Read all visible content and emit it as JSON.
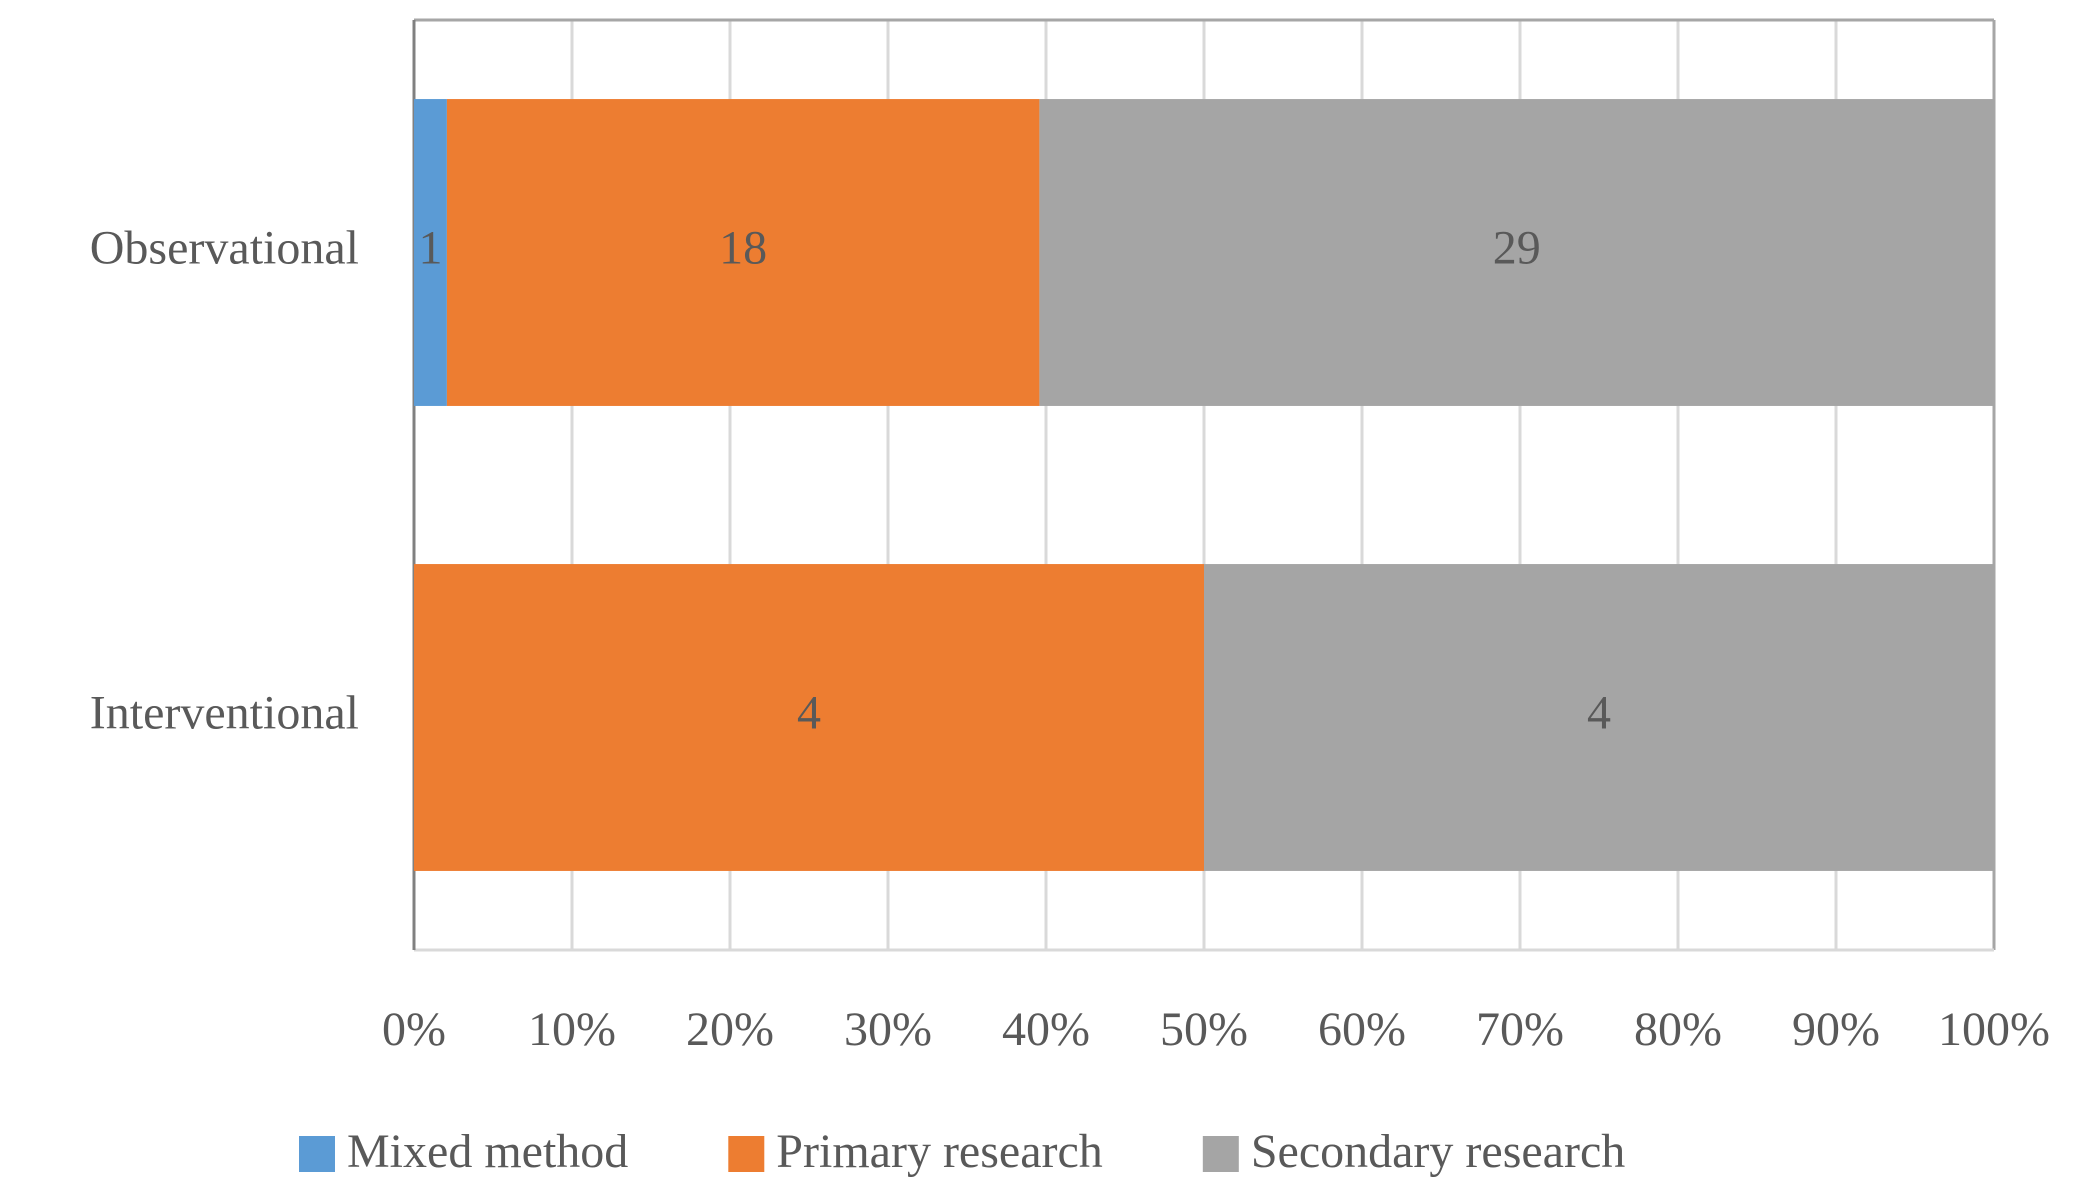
{
  "chart_data": {
    "type": "bar",
    "orientation": "horizontal",
    "stacking": "percent",
    "categories": [
      "Observational",
      "Interventional"
    ],
    "series": [
      {
        "name": "Mixed method",
        "color": "#5b9bd5",
        "values": [
          1,
          null
        ]
      },
      {
        "name": "Primary research",
        "color": "#ed7d31",
        "values": [
          18,
          4
        ]
      },
      {
        "name": "Secondary research",
        "color": "#a5a5a5",
        "values": [
          29,
          4
        ]
      }
    ],
    "xlim": [
      0,
      100
    ],
    "xticks": [
      {
        "value": 0,
        "label": "0%"
      },
      {
        "value": 10,
        "label": "10%"
      },
      {
        "value": 20,
        "label": "20%"
      },
      {
        "value": 30,
        "label": "30%"
      },
      {
        "value": 40,
        "label": "40%"
      },
      {
        "value": 50,
        "label": "50%"
      },
      {
        "value": 60,
        "label": "60%"
      },
      {
        "value": 70,
        "label": "70%"
      },
      {
        "value": 80,
        "label": "80%"
      },
      {
        "value": 90,
        "label": "90%"
      },
      {
        "value": 100,
        "label": "100%"
      }
    ],
    "grid": true,
    "legend": "bottom"
  }
}
